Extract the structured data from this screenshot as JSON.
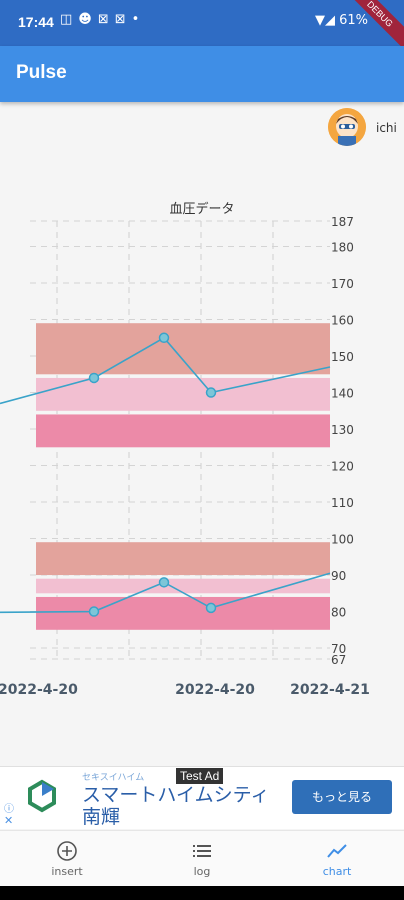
{
  "status_bar": {
    "time": "17:44",
    "battery": "61%"
  },
  "debug_banner": "DEBUG",
  "app_bar": {
    "title": "Pulse"
  },
  "user": {
    "name": "ichi"
  },
  "chart_data": {
    "type": "line",
    "title": "血圧データ",
    "x_tick_labels": [
      "2022-4-20",
      "2022-4-20",
      "2022-4-21"
    ],
    "y_tick_labels": [
      67,
      70,
      80,
      90,
      100,
      110,
      120,
      130,
      140,
      150,
      160,
      170,
      180,
      187
    ],
    "ylim": [
      67,
      187
    ],
    "grid": true,
    "bands": [
      {
        "from": 145,
        "to": 159,
        "color": "#e3a39c"
      },
      {
        "from": 135,
        "to": 144,
        "color": "#f2bfd1"
      },
      {
        "from": 125,
        "to": 134,
        "color": "#ec8aa8"
      },
      {
        "from": 90,
        "to": 99,
        "color": "#e3a39c"
      },
      {
        "from": 85,
        "to": 89,
        "color": "#f2bfd1"
      },
      {
        "from": 75,
        "to": 84,
        "color": "#ec8aa8"
      }
    ],
    "series": [
      {
        "values": [
          144,
          155,
          140
        ],
        "color": "#3aa3c9"
      },
      {
        "values": [
          80,
          88,
          81
        ],
        "color": "#3aa3c9"
      }
    ]
  },
  "ad": {
    "tag": "Test Ad",
    "small": "セキスイハイム",
    "headline": "スマートハイムシティ南輝",
    "cta": "もっと見る"
  },
  "nav": [
    {
      "label": "insert",
      "icon": "plus-circle-icon"
    },
    {
      "label": "log",
      "icon": "list-icon"
    },
    {
      "label": "chart",
      "icon": "chart-line-icon",
      "active": true
    }
  ],
  "colors": {
    "primary": "#3f8ee6",
    "status_bar": "#2f6cc4"
  }
}
